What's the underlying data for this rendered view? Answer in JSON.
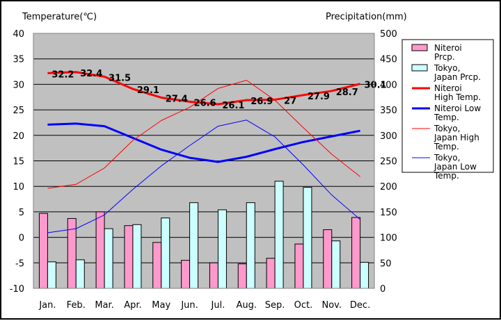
{
  "chart_data": {
    "type": "bar",
    "categories": [
      "Jan.",
      "Feb.",
      "Mar.",
      "Apr.",
      "May",
      "Jun.",
      "Jul.",
      "Aug.",
      "Sep.",
      "Oct.",
      "Nov.",
      "Dec."
    ],
    "ylabel": "Temperature(℃)",
    "y2label": "Precipitation(mm)",
    "ylim": [
      -10,
      40
    ],
    "y2lim": [
      0,
      500
    ],
    "yticks": [
      -10,
      -5,
      0,
      5,
      10,
      15,
      20,
      25,
      30,
      35,
      40
    ],
    "y2ticks": [
      0,
      50,
      100,
      150,
      200,
      250,
      300,
      350,
      400,
      450,
      500
    ],
    "grid": "horizontal",
    "legend_position": "right",
    "series": [
      {
        "name": "Niteroi Prcp.",
        "type": "bar",
        "axis": "right",
        "color": "#ff99cc",
        "values": [
          147,
          137,
          150,
          123,
          90,
          55,
          50,
          48,
          59,
          87,
          115,
          139
        ]
      },
      {
        "name": "Tokyo, Japan Prcp.",
        "type": "bar",
        "axis": "right",
        "color": "#ccffff",
        "values": [
          52,
          56,
          117,
          125,
          138,
          168,
          154,
          168,
          210,
          198,
          93,
          51
        ]
      },
      {
        "name": "Niteroi High Temp.",
        "type": "line",
        "axis": "left",
        "color": "#ff0000",
        "width": 3,
        "values": [
          32.2,
          32.4,
          31.5,
          29.1,
          27.4,
          26.6,
          26.1,
          26.9,
          27,
          27.9,
          28.7,
          30.1
        ],
        "labels": [
          "32.2",
          "32.4",
          "31.5",
          "29.1",
          "27.4",
          "26.6",
          "26.1",
          "26.9",
          "27",
          "27.9",
          "28.7",
          "30.1"
        ]
      },
      {
        "name": "Niteroi Low Temp.",
        "type": "line",
        "axis": "left",
        "color": "#0000ff",
        "width": 3,
        "values": [
          22.1,
          22.3,
          21.8,
          19.5,
          17.2,
          15.6,
          14.8,
          15.8,
          17.3,
          18.7,
          19.8,
          20.9
        ]
      },
      {
        "name": "Tokyo, Japan High Temp.",
        "type": "line",
        "axis": "left",
        "color": "#ff0000",
        "width": 1,
        "values": [
          9.6,
          10.4,
          13.6,
          19,
          22.9,
          25.5,
          29.2,
          30.8,
          26.9,
          21.5,
          16.3,
          11.9
        ]
      },
      {
        "name": "Tokyo, Japan Low Temp.",
        "type": "line",
        "axis": "left",
        "color": "#0000ff",
        "width": 1,
        "values": [
          0.9,
          1.7,
          4.4,
          9.4,
          14,
          18,
          21.8,
          23,
          19.7,
          14.2,
          8.3,
          3.5
        ]
      }
    ]
  }
}
